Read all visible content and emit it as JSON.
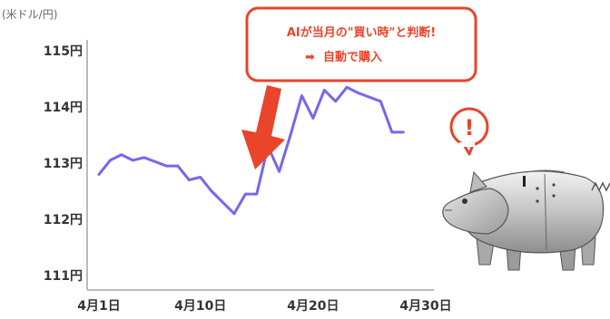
{
  "chart_data": {
    "type": "line",
    "unit_label": "(米ドル/円)",
    "y_ticks": [
      "115円",
      "114円",
      "113円",
      "112円",
      "111円"
    ],
    "y_tick_values": [
      115,
      114,
      113,
      112,
      111
    ],
    "ylim": [
      111,
      115
    ],
    "x_ticks": [
      "4月1日",
      "4月10日",
      "4月20日",
      "4月30日"
    ],
    "x_tick_values": [
      1,
      10,
      20,
      30
    ],
    "xlim": [
      1,
      30
    ],
    "series": [
      {
        "color": "#7766ee",
        "x": [
          1,
          2,
          3,
          4,
          5,
          7,
          8,
          9,
          10,
          11,
          12,
          13,
          14,
          15,
          16,
          17,
          18,
          19,
          20,
          21,
          22,
          23,
          24,
          26,
          27,
          28
        ],
        "y": [
          112.8,
          113.05,
          113.15,
          113.05,
          113.1,
          112.95,
          112.95,
          112.7,
          112.75,
          112.5,
          112.3,
          112.1,
          112.45,
          112.45,
          113.3,
          112.85,
          113.5,
          114.2,
          113.8,
          114.3,
          114.1,
          114.35,
          114.25,
          114.1,
          113.55,
          113.55
        ]
      }
    ],
    "grid": false
  },
  "callout": {
    "line1": "AIが当月の\"買い時\"と判断!",
    "line2": "自動で購入",
    "arrow_glyph": "➡",
    "color": "#e8452b"
  },
  "alert": {
    "symbol": "!",
    "color": "#e8452b"
  },
  "colors": {
    "axis": "#bbbbbb",
    "line": "#7766ee",
    "arrow": "#e8452b"
  }
}
